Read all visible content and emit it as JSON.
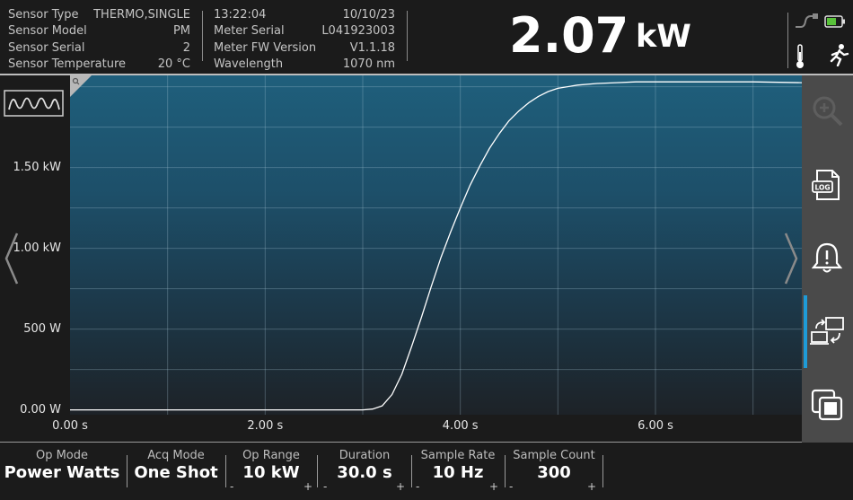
{
  "header": {
    "sensor_info": [
      {
        "label": "Sensor Type",
        "value": "THERMO,SINGLE"
      },
      {
        "label": "Sensor Model",
        "value": "PM"
      },
      {
        "label": "Sensor Serial",
        "value": "2"
      },
      {
        "label": "Sensor Temperature",
        "value": "20 °C"
      }
    ],
    "time": "13:22:04",
    "date": "10/10/23",
    "meter_info": [
      {
        "label": "Meter Serial",
        "value": "L041923003"
      },
      {
        "label": "Meter FW Version",
        "value": "V1.1.18"
      },
      {
        "label": "Wavelength",
        "value": "1070 nm"
      }
    ],
    "reading": {
      "value": "2.07",
      "unit": "kW"
    },
    "status_icons": [
      "sensor-link-icon",
      "battery-icon",
      "thermometer-icon",
      "running-person-icon"
    ]
  },
  "chart_data": {
    "type": "line",
    "y_ticks": [
      "1.50 kW",
      "1.00 kW",
      "500 W",
      "0.00 W"
    ],
    "y_tick_values": [
      1500,
      1000,
      500,
      0
    ],
    "x_ticks": [
      "0.00 s",
      "2.00 s",
      "4.00 s",
      "6.00 s"
    ],
    "x_tick_values": [
      0,
      2,
      4,
      6
    ],
    "xlim": [
      0,
      7.5
    ],
    "ylim": [
      -30,
      2070
    ],
    "grid": true,
    "series": [
      {
        "x": [
          0,
          1,
          2,
          3,
          3.1,
          3.2,
          3.3,
          3.4,
          3.5,
          3.6,
          3.7,
          3.8,
          3.9,
          4.0,
          4.1,
          4.2,
          4.3,
          4.4,
          4.5,
          4.6,
          4.7,
          4.8,
          4.9,
          5.0,
          5.2,
          5.4,
          5.6,
          5.8,
          6.0,
          6.5,
          7.0,
          7.5
        ],
        "y": [
          0,
          0,
          0,
          0,
          5,
          25,
          95,
          220,
          390,
          570,
          760,
          940,
          1100,
          1250,
          1390,
          1510,
          1620,
          1710,
          1790,
          1850,
          1900,
          1940,
          1970,
          1990,
          2010,
          2020,
          2025,
          2030,
          2030,
          2030,
          2030,
          2025
        ]
      }
    ],
    "series_color": "#ffffff"
  },
  "sidebar": {
    "icons": [
      "zoom-icon",
      "log-icon",
      "alarm-bell-icon",
      "screen-share-icon",
      "window-stack-icon"
    ]
  },
  "nav": {
    "left": "chevron-left-icon",
    "right": "chevron-right-icon"
  },
  "waveform_icon": "waveform-icon",
  "footer": [
    {
      "label": "Op Mode",
      "value": "Power Watts"
    },
    {
      "label": "Acq Mode",
      "value": "One Shot"
    },
    {
      "label": "Op Range",
      "value": "10 kW",
      "minus": "-",
      "plus": "+"
    },
    {
      "label": "Duration",
      "value": "30.0 s",
      "minus": "-",
      "plus": "+"
    },
    {
      "label": "Sample Rate",
      "value": "10 Hz",
      "minus": "-",
      "plus": "+"
    },
    {
      "label": "Sample Count",
      "value": "300",
      "minus": "-",
      "plus": "+"
    }
  ],
  "colors": {
    "accent": "#1e9bd7",
    "plot_top": "#1f5f7c",
    "plot_bottom": "#1d2227"
  }
}
